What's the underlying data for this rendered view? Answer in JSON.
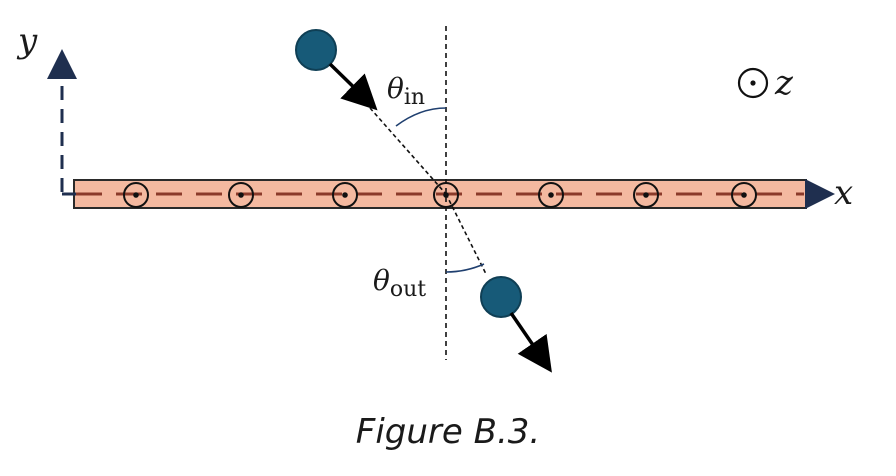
{
  "labels": {
    "y_axis": "y",
    "x_axis": "x",
    "z_axis": "z",
    "theta_symbol": "θ",
    "theta_in_sub": "in",
    "theta_out_sub": "out"
  },
  "caption": "Figure B.3.",
  "colors": {
    "strip_fill": "#f4b9a0",
    "strip_stroke": "#2a2a2a",
    "dash_line": "#8b3a2a",
    "axis": "#1f2f4f",
    "ball": "#175a78",
    "ball_stroke": "#0f3f55",
    "arrow": "#000000",
    "angle_arc": "#1f3f6f"
  },
  "icons": {
    "out_of_page": "circle-dot-icon",
    "particle": "ball-icon"
  }
}
